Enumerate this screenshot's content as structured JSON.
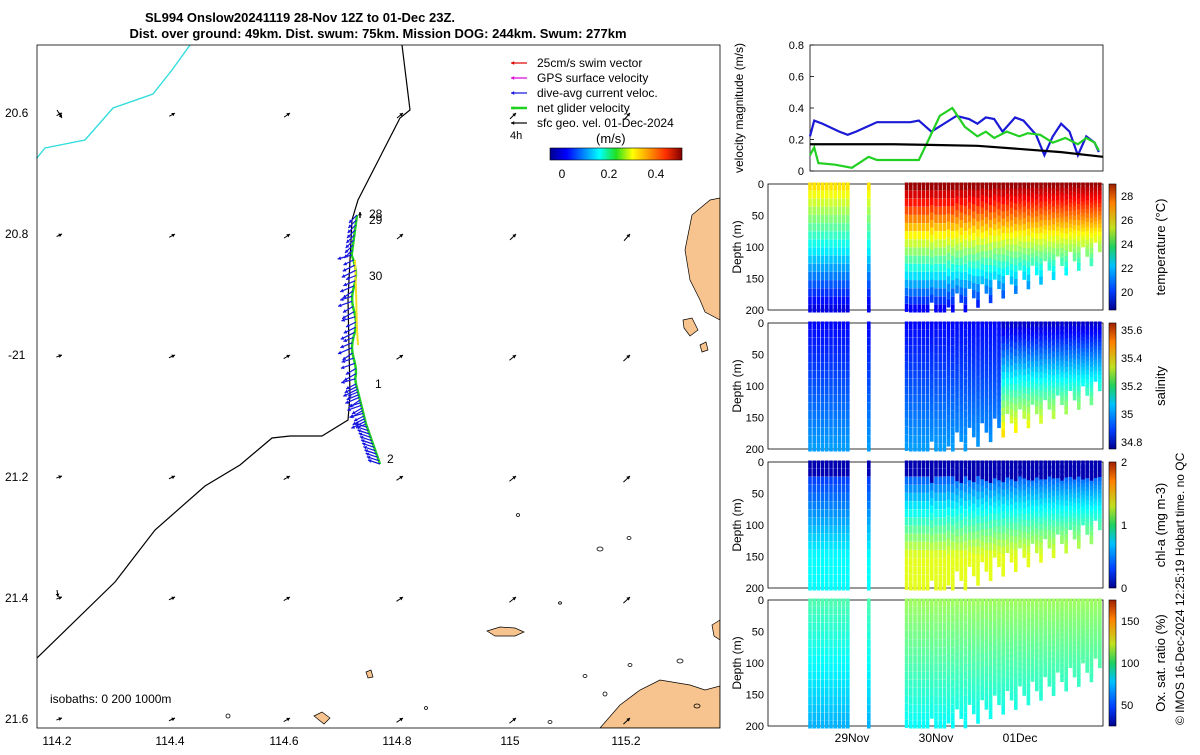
{
  "title": {
    "line1": "SL994 Onslow20241119 28-Nov 12Z to 01-Dec 23Z.",
    "line2": "Dist. over ground: 49km. Dist. swum: 75km. Mission DOG: 244km. Swum: 277km"
  },
  "legend": {
    "items": [
      {
        "label": "25cm/s swim vector",
        "color": "#e00000"
      },
      {
        "label": "GPS surface velocity",
        "color": "#e000e0"
      },
      {
        "label": "dive-avg current veloc.",
        "color": "#1010e0"
      },
      {
        "label": "net glider velocity",
        "color": "#20d020"
      },
      {
        "label": "sfc geo. vel. 01-Dec-2024",
        "color": "#000000"
      }
    ],
    "time_note": "4h"
  },
  "colorbar_main": {
    "label": "(m/s)",
    "ticks": [
      "0",
      "0.2",
      "0.4"
    ],
    "range": [
      -0.05,
      0.5
    ]
  },
  "isobaths_note": "isobaths: 0   200  1000m",
  "map_axes": {
    "lon_ticks": [
      "114.2",
      "114.4",
      "114.6",
      "114.8",
      "115",
      "115.2"
    ],
    "lat_ticks": [
      "20.6",
      "20.8",
      "-21",
      "21.2",
      "21.4",
      "21.6"
    ],
    "day_labels": [
      "28",
      "29",
      "30",
      "1",
      "2"
    ]
  },
  "footer_credit": "© IMOS 16-Dec-2024 12:25:19 Hobart time. no QC",
  "chart_data": [
    {
      "type": "line",
      "title": "",
      "ylabel": "velocity magnitude (m/s)",
      "ylim": [
        0,
        0.8
      ],
      "yticks": [
        "0",
        "0.2",
        "0.4",
        "0.6",
        "0.8"
      ],
      "x_days": [
        0,
        3.5
      ],
      "series": [
        {
          "name": "dive-avg current veloc.",
          "color": "#1a1ad6",
          "x": [
            0.0,
            0.05,
            0.15,
            0.35,
            0.45,
            0.55,
            0.8,
            1.0,
            1.2,
            1.3,
            1.45,
            1.6,
            1.75,
            1.9,
            2.0,
            2.1,
            2.2,
            2.3,
            2.45,
            2.55,
            2.7,
            2.8,
            2.9,
            3.0,
            3.1,
            3.2,
            3.3,
            3.4,
            3.45
          ],
          "values": [
            0.22,
            0.32,
            0.3,
            0.25,
            0.23,
            0.25,
            0.31,
            0.31,
            0.31,
            0.32,
            0.25,
            0.3,
            0.35,
            0.33,
            0.3,
            0.34,
            0.33,
            0.25,
            0.34,
            0.32,
            0.23,
            0.1,
            0.22,
            0.3,
            0.25,
            0.1,
            0.22,
            0.18,
            0.12
          ]
        },
        {
          "name": "net glider velocity",
          "color": "#22d022",
          "x": [
            0.0,
            0.05,
            0.1,
            0.3,
            0.5,
            0.7,
            0.8,
            1.0,
            1.2,
            1.3,
            1.4,
            1.55,
            1.7,
            1.85,
            2.0,
            2.1,
            2.2,
            2.35,
            2.5,
            2.6,
            2.75,
            2.9,
            3.05,
            3.2,
            3.3,
            3.4,
            3.45
          ],
          "values": [
            0.1,
            0.15,
            0.05,
            0.04,
            0.02,
            0.09,
            0.07,
            0.07,
            0.07,
            0.07,
            0.18,
            0.35,
            0.4,
            0.28,
            0.22,
            0.25,
            0.21,
            0.25,
            0.22,
            0.24,
            0.23,
            0.18,
            0.21,
            0.17,
            0.21,
            0.18,
            0.13
          ]
        },
        {
          "name": "sfc geo. vel.",
          "color": "#000000",
          "x": [
            0.0,
            0.5,
            1.0,
            1.5,
            2.0,
            2.5,
            3.0,
            3.5
          ],
          "values": [
            0.17,
            0.17,
            0.17,
            0.165,
            0.16,
            0.14,
            0.12,
            0.09
          ]
        }
      ]
    },
    {
      "type": "heatmap",
      "ylabel": "Depth (m)",
      "yticks": [
        "0",
        "50",
        "100",
        "150",
        "200"
      ],
      "colorbar_label": "temperature (°C)",
      "colorbar_ticks": [
        "20",
        "22",
        "24",
        "26",
        "28"
      ],
      "crange": [
        18.5,
        29
      ]
    },
    {
      "type": "heatmap",
      "ylabel": "Depth (m)",
      "yticks": [
        "0",
        "50",
        "100",
        "150",
        "200"
      ],
      "colorbar_label": "salinity",
      "colorbar_ticks": [
        "34.8",
        "35",
        "35.2",
        "35.4",
        "35.6"
      ],
      "crange": [
        34.75,
        35.65
      ]
    },
    {
      "type": "heatmap",
      "ylabel": "Depth (m)",
      "yticks": [
        "0",
        "50",
        "100",
        "150",
        "200"
      ],
      "colorbar_label": "chl-a (mg m-3)",
      "colorbar_ticks": [
        "0",
        "1",
        "2"
      ],
      "crange": [
        0,
        2
      ]
    },
    {
      "type": "heatmap",
      "ylabel": "Depth (m)",
      "yticks": [
        "0",
        "50",
        "100",
        "150",
        "200"
      ],
      "colorbar_label": "Ox. sat. ratio (%)",
      "colorbar_ticks": [
        "50",
        "100",
        "150"
      ],
      "crange": [
        25,
        175
      ],
      "xticks": [
        "29Nov",
        "30Nov",
        "01Dec"
      ]
    }
  ]
}
